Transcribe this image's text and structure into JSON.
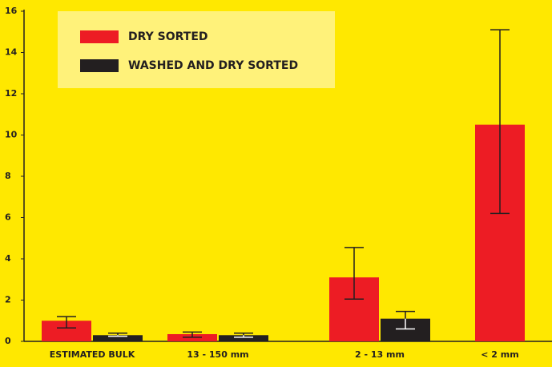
{
  "chart_data": {
    "type": "bar",
    "categories": [
      "ESTIMATED BULK",
      "13 - 150 mm",
      "2 - 13 mm",
      "< 2 mm"
    ],
    "series": [
      {
        "name": "DRY SORTED",
        "color": "#ed1c24",
        "values": [
          1.0,
          0.35,
          3.1,
          10.5
        ],
        "errors": [
          [
            0.35,
            0.2
          ],
          [
            0.15,
            0.1
          ],
          [
            1.05,
            1.45
          ],
          [
            4.3,
            4.6
          ]
        ]
      },
      {
        "name": "WASHED AND DRY SORTED",
        "color": "#231f20",
        "values": [
          0.3,
          0.3,
          1.1,
          null
        ],
        "errors": [
          [
            0.05,
            0.1
          ],
          [
            0.1,
            0.1
          ],
          [
            0.5,
            0.35
          ],
          null
        ]
      }
    ],
    "ylim": [
      0,
      16
    ],
    "yticks": [
      0,
      2,
      4,
      6,
      8,
      10,
      12,
      14,
      16
    ],
    "grid": false
  }
}
